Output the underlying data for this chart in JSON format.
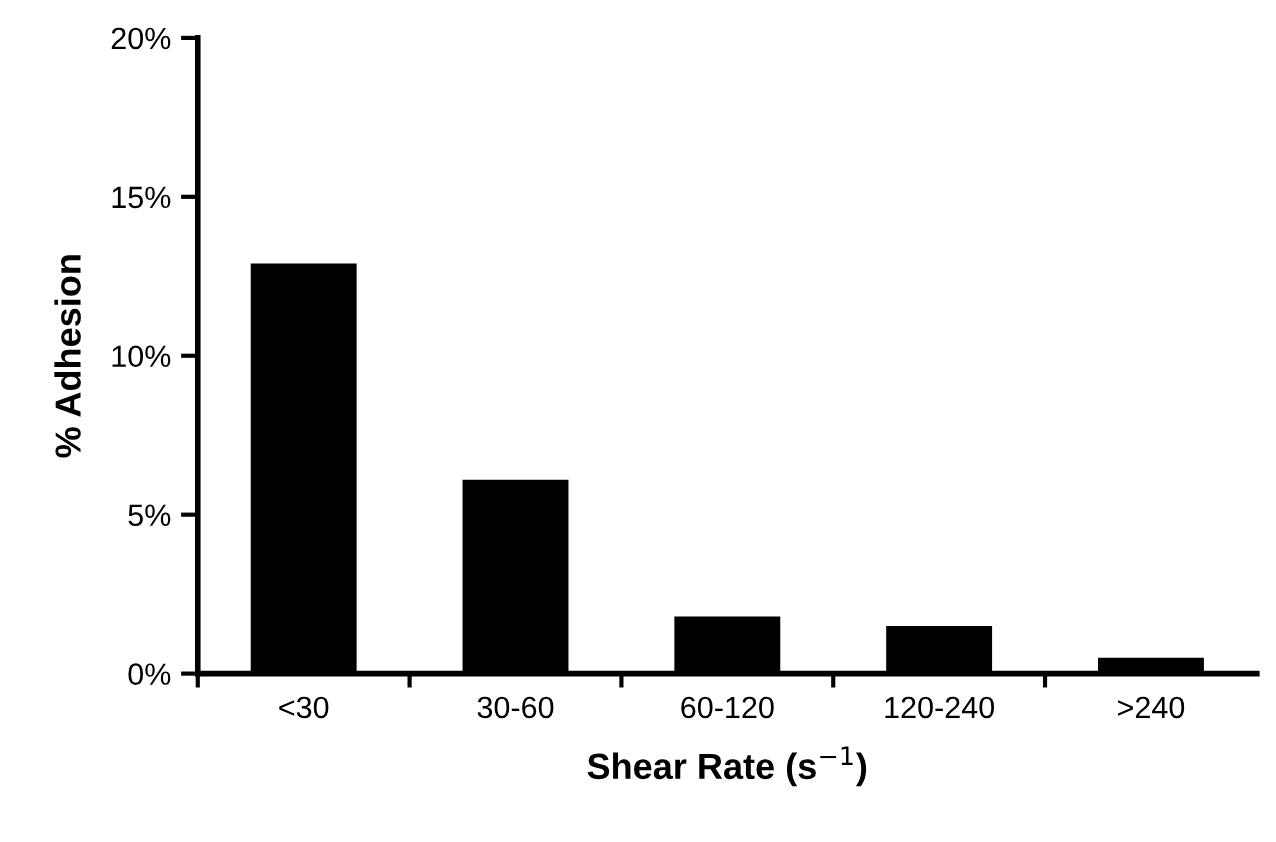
{
  "chart_data": {
    "type": "bar",
    "xlabel": "Shear Rate (s$^{−1}$)",
    "ylabel": "% Adhesion",
    "categories": [
      "<30",
      "30-60",
      "60-120",
      "120-240",
      ">240"
    ],
    "values": [
      12.9,
      6.1,
      1.8,
      1.5,
      0.5
    ],
    "color": "#000000",
    "ylim": [
      0,
      20
    ],
    "yticks": [
      {
        "value": 0,
        "label": "0%"
      },
      {
        "value": 5,
        "label": "5%"
      },
      {
        "value": 10,
        "label": "10%"
      },
      {
        "value": 15,
        "label": "15%"
      },
      {
        "value": 20,
        "label": "20%"
      }
    ],
    "grid": false,
    "legend": false
  }
}
